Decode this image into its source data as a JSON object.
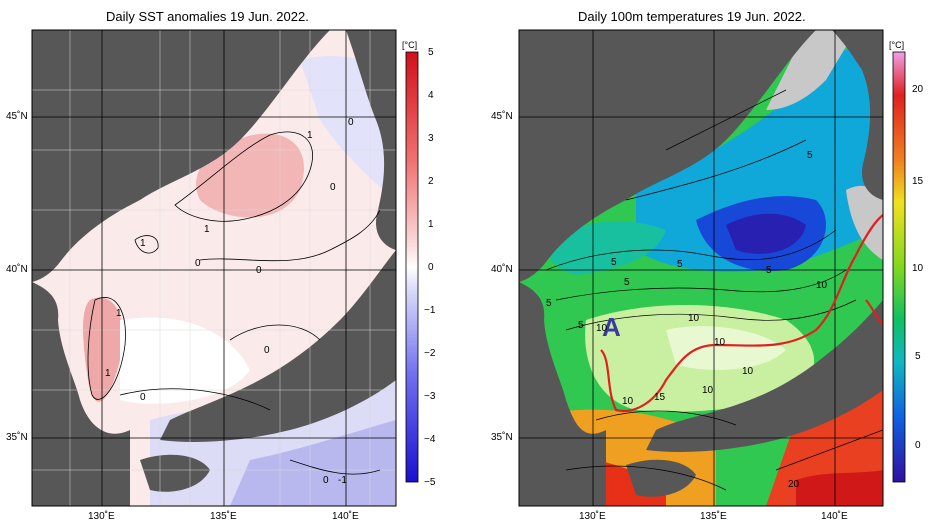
{
  "left": {
    "title": "Daily SST anomalies 19 Jun. 2022.",
    "unit": "[°C]",
    "ticks": [
      "5",
      "4",
      "3",
      "2",
      "1",
      "0",
      "−1",
      "−2",
      "−3",
      "−4",
      "−5"
    ],
    "lat_labels": [
      "45˚N",
      "40˚N",
      "35˚N"
    ],
    "lon_labels": [
      "130˚E",
      "135˚E",
      "140˚E"
    ],
    "contour_labels": [
      "1",
      "0",
      "0",
      "1",
      "1",
      "0",
      "0",
      "1",
      "1",
      "0",
      "0",
      "0",
      "-1"
    ]
  },
  "right": {
    "title": "Daily 100m temperatures 19 Jun. 2022.",
    "unit": "[°C]",
    "ticks": [
      "20",
      "15",
      "10",
      "5",
      "0"
    ],
    "lat_labels": [
      "45˚N",
      "40˚N",
      "35˚N"
    ],
    "lon_labels": [
      "130˚E",
      "135˚E",
      "140˚E"
    ],
    "contour_labels": [
      "5",
      "5",
      "5",
      "5",
      "5",
      "5",
      "5",
      "10",
      "10",
      "10",
      "10",
      "10",
      "10",
      "15",
      "10",
      "20"
    ],
    "marker": "A"
  },
  "colors": {
    "land": "#575757",
    "shelf": "#c8c8c8",
    "front": "#e02020"
  }
}
